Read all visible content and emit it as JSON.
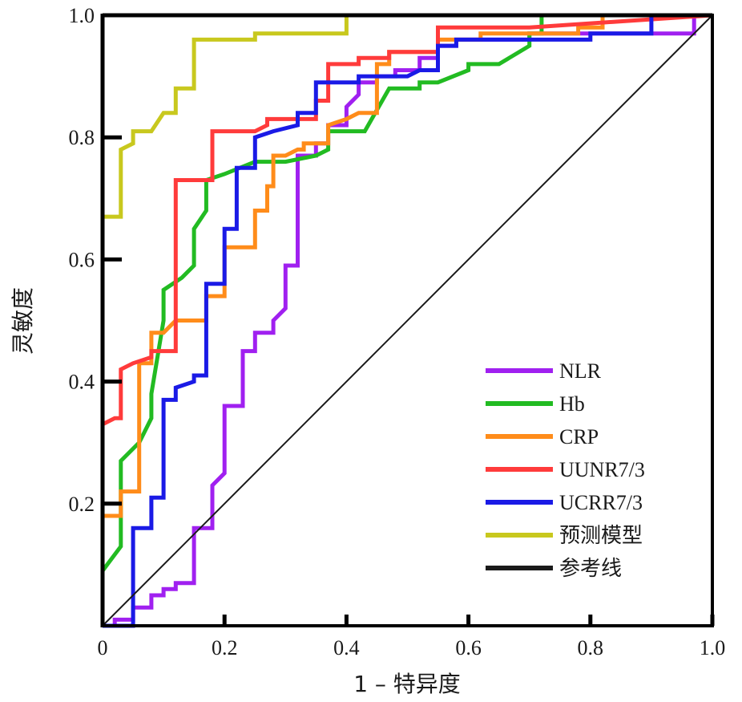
{
  "chart_data": {
    "type": "line",
    "title": "",
    "xlabel": "1 – 特异度",
    "ylabel": "灵敏度",
    "xlim": [
      0,
      1
    ],
    "ylim": [
      0,
      1
    ],
    "x_tick_labels": [
      "0",
      "0.2",
      "0.4",
      "0.6",
      "0.8",
      "1.0"
    ],
    "y_tick_labels": [
      "0.2",
      "0.4",
      "0.6",
      "0.8",
      "1.0"
    ],
    "grid": false,
    "legend_position": "bottom-right",
    "series": [
      {
        "name": "NLR",
        "color": "#a020f0",
        "points": [
          [
            0,
            0
          ],
          [
            0.02,
            0
          ],
          [
            0.02,
            0.01
          ],
          [
            0.05,
            0.01
          ],
          [
            0.05,
            0.03
          ],
          [
            0.08,
            0.03
          ],
          [
            0.08,
            0.05
          ],
          [
            0.1,
            0.05
          ],
          [
            0.1,
            0.06
          ],
          [
            0.12,
            0.06
          ],
          [
            0.12,
            0.07
          ],
          [
            0.15,
            0.07
          ],
          [
            0.15,
            0.16
          ],
          [
            0.18,
            0.16
          ],
          [
            0.18,
            0.23
          ],
          [
            0.2,
            0.25
          ],
          [
            0.2,
            0.36
          ],
          [
            0.23,
            0.36
          ],
          [
            0.23,
            0.45
          ],
          [
            0.25,
            0.45
          ],
          [
            0.25,
            0.48
          ],
          [
            0.28,
            0.48
          ],
          [
            0.28,
            0.5
          ],
          [
            0.3,
            0.52
          ],
          [
            0.3,
            0.59
          ],
          [
            0.32,
            0.59
          ],
          [
            0.32,
            0.77
          ],
          [
            0.35,
            0.77
          ],
          [
            0.35,
            0.79
          ],
          [
            0.37,
            0.79
          ],
          [
            0.37,
            0.82
          ],
          [
            0.4,
            0.82
          ],
          [
            0.4,
            0.85
          ],
          [
            0.42,
            0.87
          ],
          [
            0.42,
            0.89
          ],
          [
            0.45,
            0.89
          ],
          [
            0.45,
            0.9
          ],
          [
            0.48,
            0.9
          ],
          [
            0.48,
            0.91
          ],
          [
            0.52,
            0.91
          ],
          [
            0.52,
            0.93
          ],
          [
            0.55,
            0.93
          ],
          [
            0.55,
            0.95
          ],
          [
            0.58,
            0.95
          ],
          [
            0.58,
            0.96
          ],
          [
            0.7,
            0.96
          ],
          [
            0.7,
            0.97
          ],
          [
            0.97,
            0.97
          ],
          [
            0.97,
            1.0
          ],
          [
            1.0,
            1.0
          ]
        ]
      },
      {
        "name": "Hb",
        "color": "#22bb22",
        "points": [
          [
            0,
            0
          ],
          [
            0,
            0.09
          ],
          [
            0.03,
            0.13
          ],
          [
            0.03,
            0.27
          ],
          [
            0.06,
            0.3
          ],
          [
            0.08,
            0.34
          ],
          [
            0.08,
            0.38
          ],
          [
            0.1,
            0.5
          ],
          [
            0.1,
            0.55
          ],
          [
            0.13,
            0.57
          ],
          [
            0.15,
            0.59
          ],
          [
            0.15,
            0.65
          ],
          [
            0.17,
            0.68
          ],
          [
            0.17,
            0.73
          ],
          [
            0.2,
            0.74
          ],
          [
            0.25,
            0.76
          ],
          [
            0.3,
            0.76
          ],
          [
            0.35,
            0.77
          ],
          [
            0.37,
            0.78
          ],
          [
            0.37,
            0.81
          ],
          [
            0.43,
            0.81
          ],
          [
            0.47,
            0.88
          ],
          [
            0.52,
            0.88
          ],
          [
            0.52,
            0.89
          ],
          [
            0.55,
            0.89
          ],
          [
            0.6,
            0.91
          ],
          [
            0.6,
            0.92
          ],
          [
            0.65,
            0.92
          ],
          [
            0.7,
            0.95
          ],
          [
            0.7,
            0.97
          ],
          [
            0.72,
            0.97
          ],
          [
            0.72,
            1.0
          ],
          [
            1.0,
            1.0
          ]
        ]
      },
      {
        "name": "CRP",
        "color": "#ff8c1a",
        "points": [
          [
            0,
            0
          ],
          [
            0,
            0.1
          ],
          [
            0,
            0.18
          ],
          [
            0.03,
            0.18
          ],
          [
            0.03,
            0.22
          ],
          [
            0.05,
            0.22
          ],
          [
            0.05,
            0.22
          ],
          [
            0.06,
            0.22
          ],
          [
            0.06,
            0.43
          ],
          [
            0.08,
            0.43
          ],
          [
            0.08,
            0.48
          ],
          [
            0.1,
            0.48
          ],
          [
            0.12,
            0.5
          ],
          [
            0.17,
            0.5
          ],
          [
            0.17,
            0.54
          ],
          [
            0.2,
            0.54
          ],
          [
            0.2,
            0.62
          ],
          [
            0.23,
            0.62
          ],
          [
            0.25,
            0.62
          ],
          [
            0.25,
            0.68
          ],
          [
            0.27,
            0.68
          ],
          [
            0.27,
            0.72
          ],
          [
            0.28,
            0.72
          ],
          [
            0.28,
            0.77
          ],
          [
            0.3,
            0.77
          ],
          [
            0.32,
            0.78
          ],
          [
            0.33,
            0.78
          ],
          [
            0.33,
            0.79
          ],
          [
            0.37,
            0.79
          ],
          [
            0.37,
            0.82
          ],
          [
            0.4,
            0.83
          ],
          [
            0.42,
            0.84
          ],
          [
            0.45,
            0.84
          ],
          [
            0.45,
            0.92
          ],
          [
            0.47,
            0.92
          ],
          [
            0.47,
            0.94
          ],
          [
            0.55,
            0.94
          ],
          [
            0.55,
            0.96
          ],
          [
            0.62,
            0.96
          ],
          [
            0.62,
            0.97
          ],
          [
            0.78,
            0.97
          ],
          [
            0.78,
            0.98
          ],
          [
            0.82,
            0.98
          ],
          [
            0.82,
            1.0
          ],
          [
            1.0,
            1.0
          ]
        ]
      },
      {
        "name": "UUNR7/3",
        "color": "#ff3b3b",
        "points": [
          [
            0,
            0
          ],
          [
            0,
            0.33
          ],
          [
            0.02,
            0.34
          ],
          [
            0.03,
            0.34
          ],
          [
            0.03,
            0.42
          ],
          [
            0.05,
            0.43
          ],
          [
            0.08,
            0.44
          ],
          [
            0.08,
            0.45
          ],
          [
            0.12,
            0.45
          ],
          [
            0.12,
            0.73
          ],
          [
            0.18,
            0.73
          ],
          [
            0.18,
            0.81
          ],
          [
            0.25,
            0.81
          ],
          [
            0.27,
            0.82
          ],
          [
            0.27,
            0.83
          ],
          [
            0.3,
            0.83
          ],
          [
            0.35,
            0.83
          ],
          [
            0.35,
            0.86
          ],
          [
            0.37,
            0.86
          ],
          [
            0.37,
            0.92
          ],
          [
            0.42,
            0.92
          ],
          [
            0.42,
            0.93
          ],
          [
            0.47,
            0.93
          ],
          [
            0.47,
            0.94
          ],
          [
            0.55,
            0.94
          ],
          [
            0.55,
            0.98
          ],
          [
            0.7,
            0.98
          ],
          [
            1.0,
            1.0
          ]
        ]
      },
      {
        "name": "UCRR7/3",
        "color": "#1a1ae6",
        "points": [
          [
            0,
            0
          ],
          [
            0.05,
            0
          ],
          [
            0.05,
            0.16
          ],
          [
            0.08,
            0.16
          ],
          [
            0.08,
            0.21
          ],
          [
            0.1,
            0.21
          ],
          [
            0.1,
            0.37
          ],
          [
            0.12,
            0.37
          ],
          [
            0.12,
            0.39
          ],
          [
            0.15,
            0.4
          ],
          [
            0.15,
            0.41
          ],
          [
            0.17,
            0.41
          ],
          [
            0.17,
            0.56
          ],
          [
            0.2,
            0.56
          ],
          [
            0.2,
            0.65
          ],
          [
            0.22,
            0.65
          ],
          [
            0.22,
            0.75
          ],
          [
            0.25,
            0.75
          ],
          [
            0.25,
            0.8
          ],
          [
            0.28,
            0.81
          ],
          [
            0.32,
            0.82
          ],
          [
            0.32,
            0.84
          ],
          [
            0.35,
            0.84
          ],
          [
            0.35,
            0.89
          ],
          [
            0.42,
            0.89
          ],
          [
            0.42,
            0.9
          ],
          [
            0.48,
            0.9
          ],
          [
            0.5,
            0.9
          ],
          [
            0.52,
            0.91
          ],
          [
            0.55,
            0.91
          ],
          [
            0.55,
            0.95
          ],
          [
            0.58,
            0.95
          ],
          [
            0.58,
            0.96
          ],
          [
            0.8,
            0.96
          ],
          [
            0.8,
            0.97
          ],
          [
            0.9,
            0.97
          ],
          [
            0.9,
            1.0
          ],
          [
            1.0,
            1.0
          ]
        ]
      },
      {
        "name": "预测模型",
        "color": "#c8c81e",
        "points": [
          [
            0,
            0
          ],
          [
            0,
            0.67
          ],
          [
            0.03,
            0.67
          ],
          [
            0.03,
            0.78
          ],
          [
            0.05,
            0.79
          ],
          [
            0.05,
            0.81
          ],
          [
            0.08,
            0.81
          ],
          [
            0.1,
            0.84
          ],
          [
            0.12,
            0.84
          ],
          [
            0.12,
            0.88
          ],
          [
            0.15,
            0.88
          ],
          [
            0.15,
            0.96
          ],
          [
            0.25,
            0.96
          ],
          [
            0.25,
            0.97
          ],
          [
            0.4,
            0.97
          ],
          [
            0.4,
            1.0
          ],
          [
            1.0,
            1.0
          ]
        ]
      },
      {
        "name": "参考线",
        "color": "#1a1a1a",
        "points": [
          [
            0,
            0
          ],
          [
            1,
            1
          ]
        ]
      }
    ]
  }
}
